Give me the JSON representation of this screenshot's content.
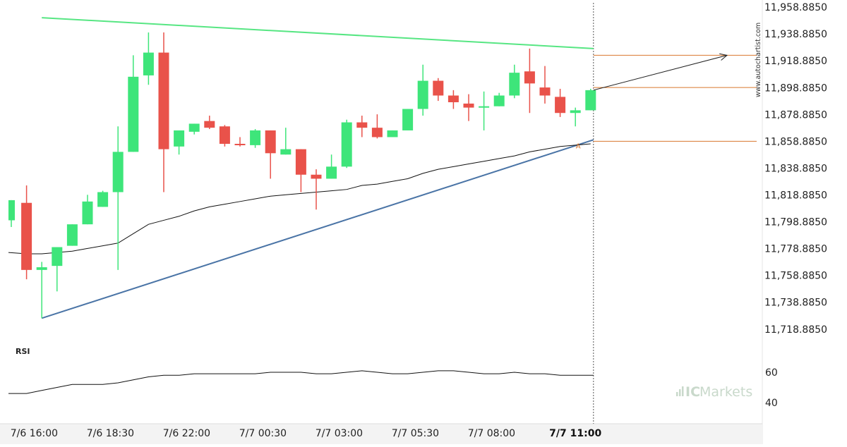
{
  "watermark": "www.autochartist.com",
  "brand": {
    "prefix": "IC",
    "suffix": "Markets",
    "color_accent": "#c9d9cb"
  },
  "rsi_label": "RSI",
  "rsi_ticks": [
    "60",
    "40"
  ],
  "pattern_marker": "A",
  "colors": {
    "up": "#3ee57a",
    "down": "#e9524a",
    "trend_upper": "#57e683",
    "trend_lower": "#4a74a6",
    "level": "#d9772e",
    "ma": "#111111",
    "rsi": "#111111"
  },
  "chart_data": {
    "type": "candlestick",
    "y_tick_labels": [
      "11,958.8850",
      "11,938.8850",
      "11,918.8850",
      "11,898.8850",
      "11,878.8850",
      "11,858.8850",
      "11,838.8850",
      "11,818.8850",
      "11,798.8850",
      "11,778.8850",
      "11,758.8850",
      "11,738.8850",
      "11,718.8850"
    ],
    "y_ticks": [
      11958.885,
      11938.885,
      11918.885,
      11898.885,
      11878.885,
      11858.885,
      11838.885,
      11818.885,
      11798.885,
      11778.885,
      11758.885,
      11738.885,
      11718.885
    ],
    "ylim": [
      11713,
      11960
    ],
    "x_tick_labels": [
      "7/6 16:00",
      "7/6 18:30",
      "7/6 22:00",
      "7/7 00:30",
      "7/7 03:00",
      "7/7 05:30",
      "7/7 08:00",
      "7/7 11:00"
    ],
    "x_tick_index": [
      1.5,
      6.5,
      11.5,
      16.5,
      21.5,
      26.5,
      31.5,
      37
    ],
    "x_tick_bold": [
      false,
      false,
      false,
      false,
      false,
      false,
      false,
      true
    ],
    "candles": [
      {
        "o": 11800,
        "h": 11815,
        "l": 11795,
        "c": 11815
      },
      {
        "o": 11813,
        "h": 11826,
        "l": 11756,
        "c": 11763
      },
      {
        "o": 11763,
        "h": 11769,
        "l": 11727,
        "c": 11765
      },
      {
        "o": 11766,
        "h": 11780,
        "l": 11747,
        "c": 11780
      },
      {
        "o": 11781,
        "h": 11797,
        "l": 11781,
        "c": 11797
      },
      {
        "o": 11797,
        "h": 11819,
        "l": 11797,
        "c": 11814
      },
      {
        "o": 11810,
        "h": 11822,
        "l": 11810,
        "c": 11821
      },
      {
        "o": 11821,
        "h": 11870,
        "l": 11763,
        "c": 11851
      },
      {
        "o": 11851,
        "h": 11923,
        "l": 11851,
        "c": 11907
      },
      {
        "o": 11908,
        "h": 11940,
        "l": 11901,
        "c": 11925
      },
      {
        "o": 11925,
        "h": 11940,
        "l": 11821,
        "c": 11853
      },
      {
        "o": 11855,
        "h": 11867,
        "l": 11849,
        "c": 11867
      },
      {
        "o": 11866,
        "h": 11872,
        "l": 11864,
        "c": 11872
      },
      {
        "o": 11874,
        "h": 11878,
        "l": 11868,
        "c": 11869
      },
      {
        "o": 11870,
        "h": 11871,
        "l": 11855,
        "c": 11857
      },
      {
        "o": 11857,
        "h": 11862,
        "l": 11855,
        "c": 11856
      },
      {
        "o": 11856,
        "h": 11868,
        "l": 11854,
        "c": 11867
      },
      {
        "o": 11867,
        "h": 11867,
        "l": 11831,
        "c": 11850
      },
      {
        "o": 11849,
        "h": 11869,
        "l": 11849,
        "c": 11853
      },
      {
        "o": 11853,
        "h": 11853,
        "l": 11821,
        "c": 11834
      },
      {
        "o": 11834,
        "h": 11838,
        "l": 11808,
        "c": 11831
      },
      {
        "o": 11831,
        "h": 11849,
        "l": 11831,
        "c": 11840
      },
      {
        "o": 11840,
        "h": 11875,
        "l": 11839,
        "c": 11873
      },
      {
        "o": 11873,
        "h": 11878,
        "l": 11862,
        "c": 11869
      },
      {
        "o": 11869,
        "h": 11879,
        "l": 11861,
        "c": 11862
      },
      {
        "o": 11862,
        "h": 11867,
        "l": 11862,
        "c": 11867
      },
      {
        "o": 11867,
        "h": 11883,
        "l": 11867,
        "c": 11883
      },
      {
        "o": 11883,
        "h": 11916,
        "l": 11878,
        "c": 11904
      },
      {
        "o": 11904,
        "h": 11906,
        "l": 11889,
        "c": 11893
      },
      {
        "o": 11893,
        "h": 11897,
        "l": 11883,
        "c": 11888
      },
      {
        "o": 11887,
        "h": 11894,
        "l": 11874,
        "c": 11884
      },
      {
        "o": 11884,
        "h": 11896,
        "l": 11867,
        "c": 11885
      },
      {
        "o": 11885,
        "h": 11895,
        "l": 11885,
        "c": 11893
      },
      {
        "o": 11893,
        "h": 11916,
        "l": 11891,
        "c": 11910
      },
      {
        "o": 11911,
        "h": 11928,
        "l": 11880,
        "c": 11902
      },
      {
        "o": 11899,
        "h": 11915,
        "l": 11887,
        "c": 11893
      },
      {
        "o": 11892,
        "h": 11898,
        "l": 11877,
        "c": 11880
      },
      {
        "o": 11880,
        "h": 11884,
        "l": 11870,
        "c": 11882
      },
      {
        "o": 11882,
        "h": 11898,
        "l": 11882,
        "c": 11897
      }
    ],
    "moving_average": [
      11776,
      11775,
      11775,
      11776,
      11777,
      11779,
      11781,
      11783,
      11790,
      11797,
      11800,
      11803,
      11807,
      11810,
      11812,
      11814,
      11816,
      11818,
      11819,
      11820,
      11821,
      11822,
      11823,
      11826,
      11827,
      11829,
      11831,
      11835,
      11838,
      11840,
      11842,
      11844,
      11846,
      11848,
      11851,
      11853,
      11855,
      11856,
      11857
    ],
    "trendline_upper": {
      "from": [
        2,
        11951
      ],
      "to": [
        38,
        11928
      ]
    },
    "trendline_lower": {
      "from": [
        2,
        11727
      ],
      "to": [
        38,
        11860
      ]
    },
    "forecast_arrow": {
      "from": [
        38,
        11897
      ],
      "to": [
        47,
        11923
      ]
    },
    "levels": [
      11923,
      11899,
      11858.9
    ],
    "rsi": [
      46,
      46,
      48,
      50,
      52,
      52,
      52,
      53,
      55,
      57,
      58,
      58,
      59,
      59,
      59,
      59,
      59,
      60,
      60,
      60,
      59,
      59,
      60,
      61,
      60,
      59,
      59,
      60,
      61,
      61,
      60,
      59,
      59,
      60,
      59,
      59,
      58,
      58,
      58
    ]
  }
}
